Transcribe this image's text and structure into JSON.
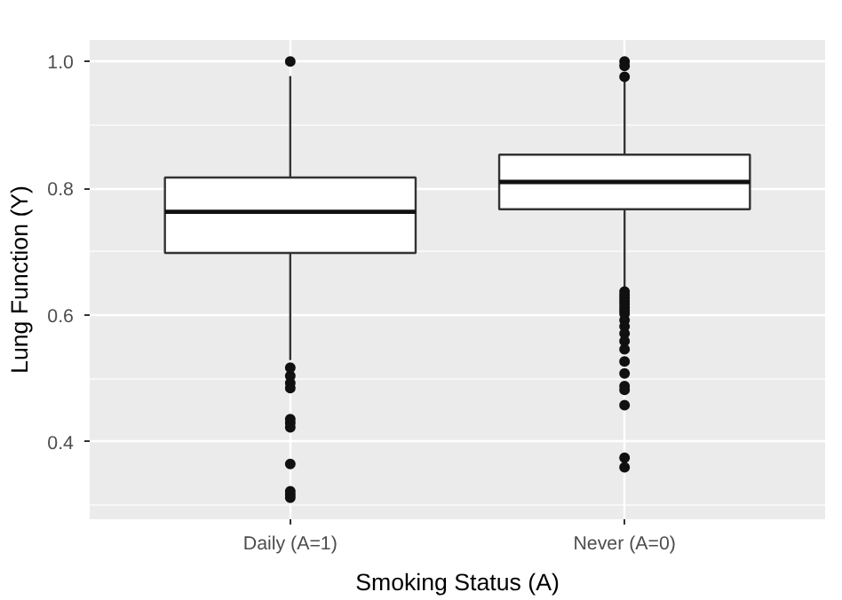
{
  "chart_data": {
    "type": "box",
    "xlabel": "Smoking Status (A)",
    "ylabel": "Lung Function (Y)",
    "categories": [
      "Daily (A=1)",
      "Never (A=0)"
    ],
    "boxes": [
      {
        "low": 0.529,
        "q1": 0.698,
        "median": 0.763,
        "q3": 0.817,
        "high": 0.977,
        "outliers": [
          1.0,
          0.517,
          0.504,
          0.493,
          0.485,
          0.436,
          0.43,
          0.423,
          0.365,
          0.322,
          0.317,
          0.312
        ]
      },
      {
        "low": 0.641,
        "q1": 0.767,
        "median": 0.81,
        "q3": 0.853,
        "high": 0.97,
        "outliers": [
          1.0,
          0.993,
          0.976,
          0.637,
          0.632,
          0.627,
          0.622,
          0.617,
          0.612,
          0.607,
          0.602,
          0.592,
          0.582,
          0.571,
          0.559,
          0.546,
          0.527,
          0.508,
          0.488,
          0.482,
          0.458,
          0.375,
          0.36
        ]
      }
    ],
    "ylim": [
      0.278,
      1.034
    ],
    "yticks": [
      0.4,
      0.6,
      0.8,
      {
        "value": 1,
        "label": "1.0"
      }
    ],
    "grid": true,
    "color": "#ffffff"
  }
}
